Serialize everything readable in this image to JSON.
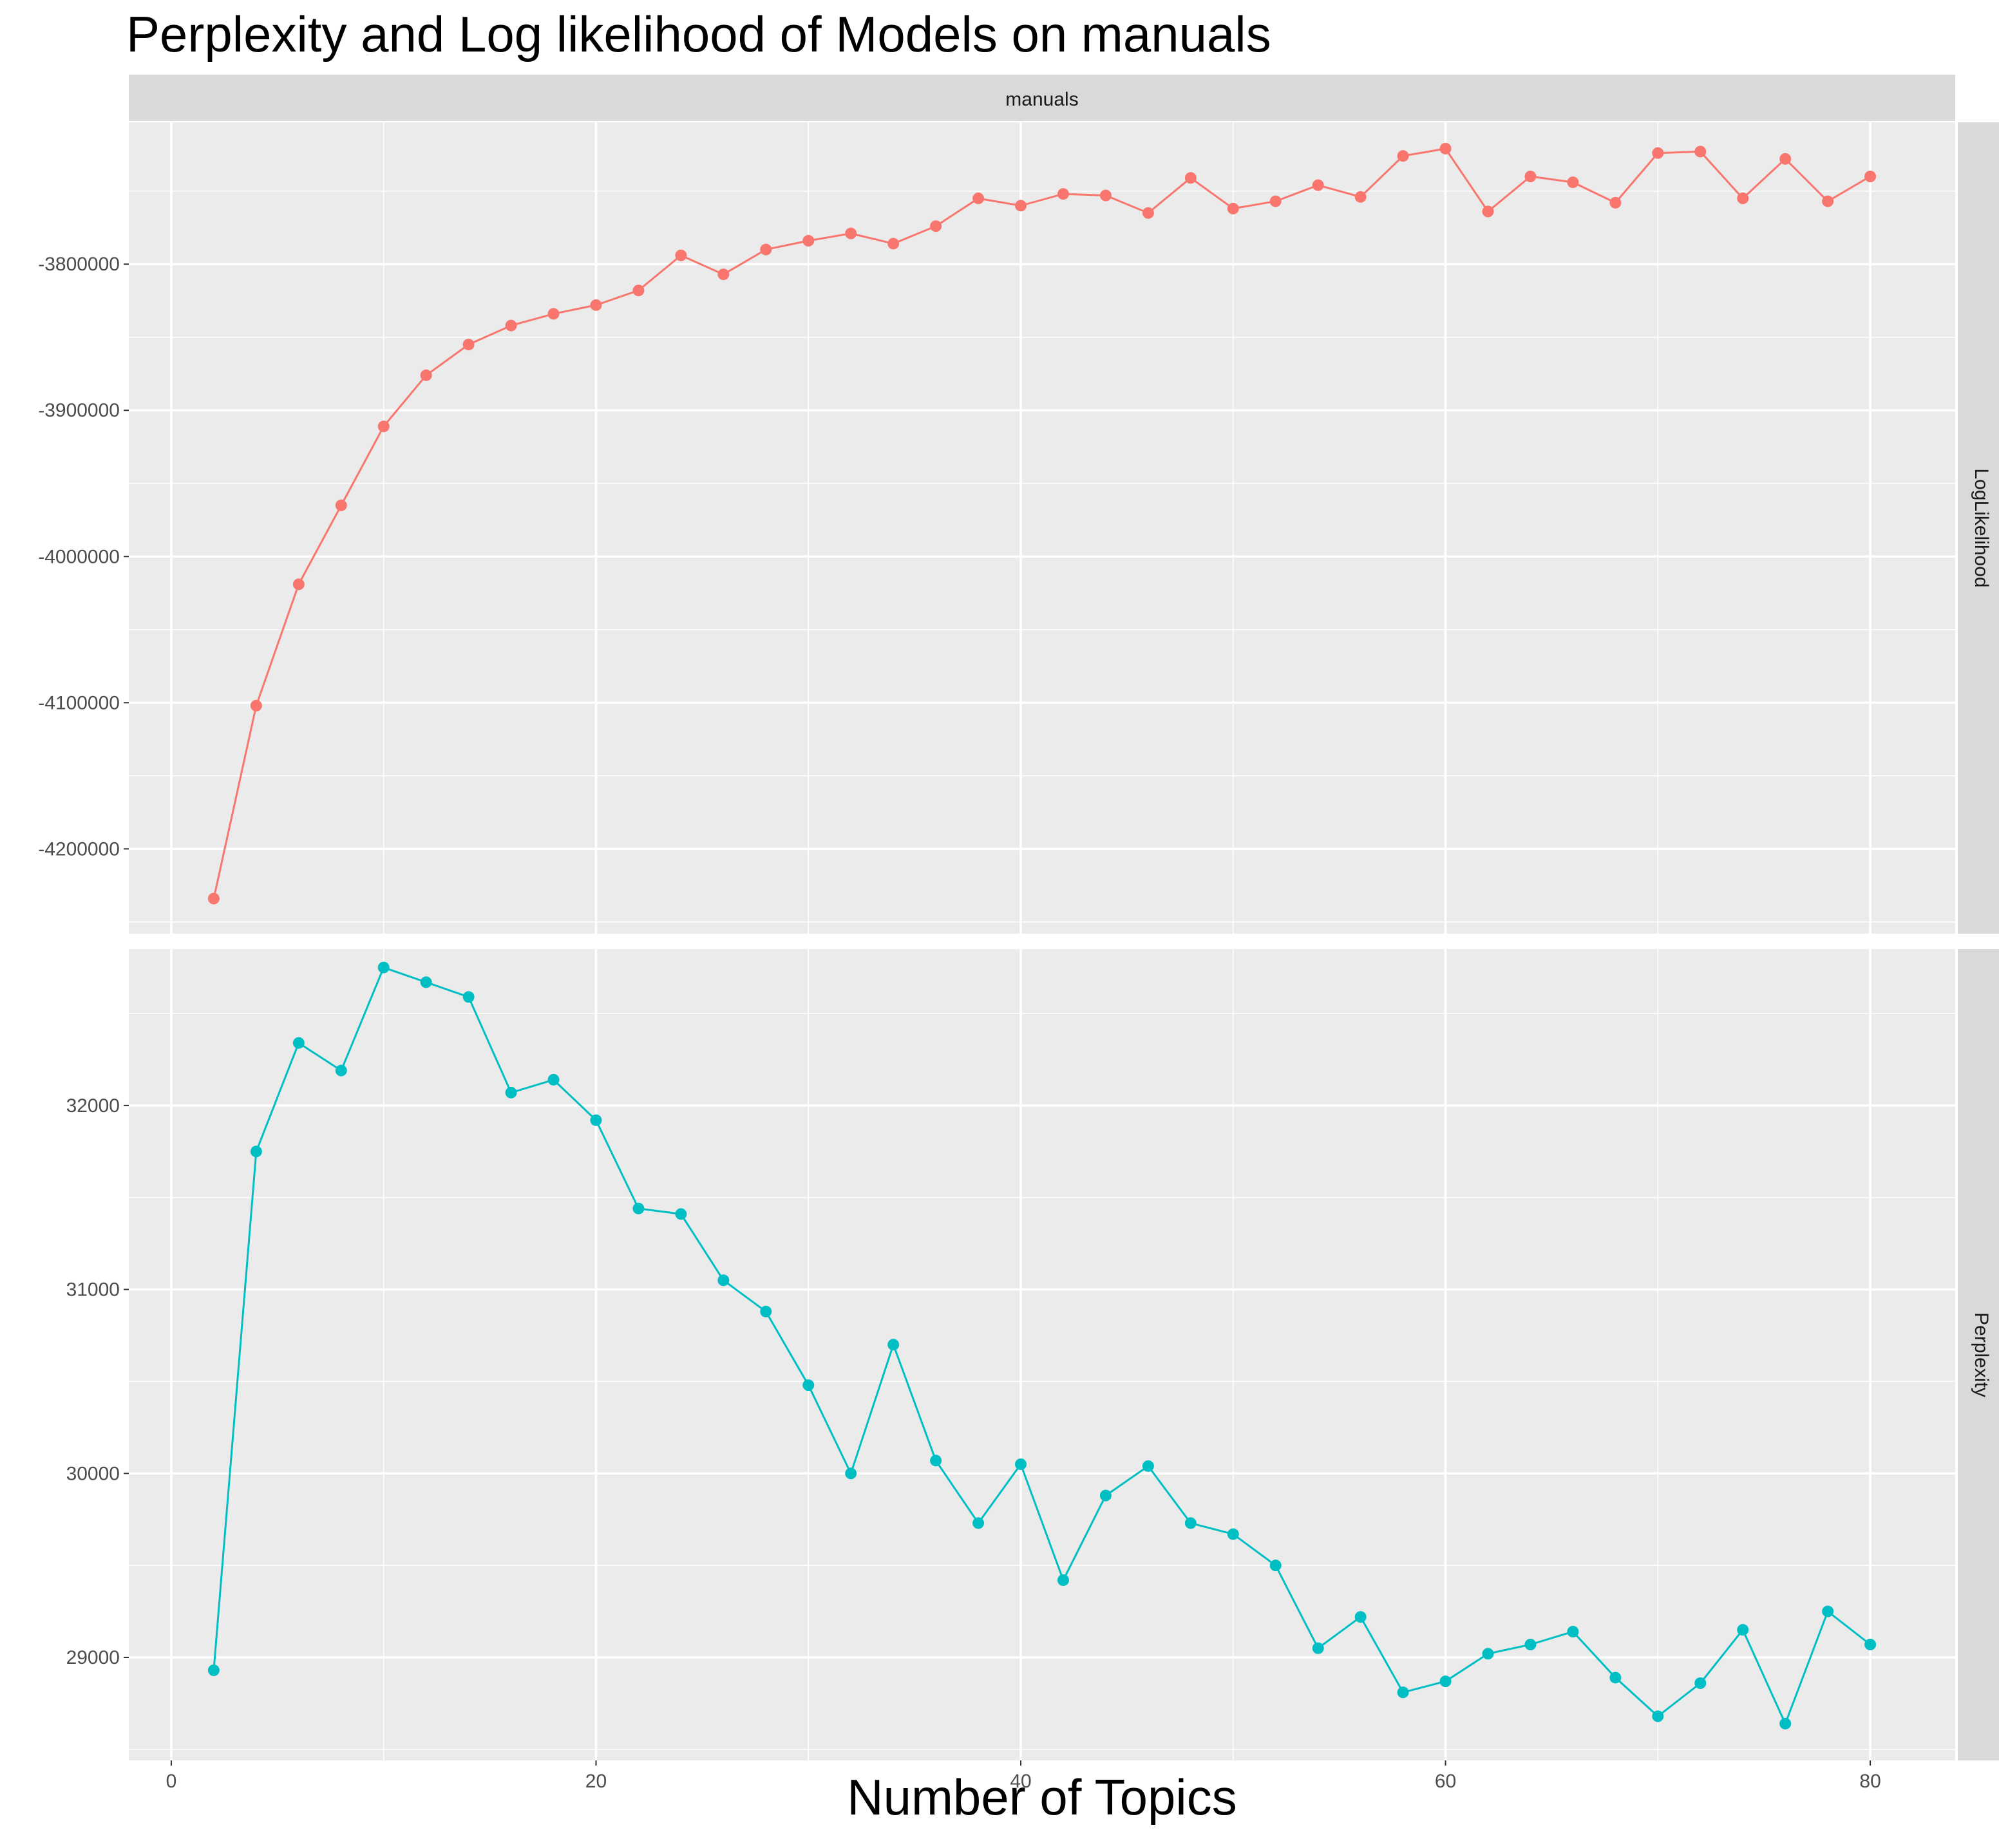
{
  "chart_data": {
    "type": "line",
    "title": "Perplexity and Log likelihood of Models on manuals",
    "xlabel": "Number of Topics",
    "column_strip": "manuals",
    "x": [
      2,
      4,
      6,
      8,
      10,
      12,
      14,
      16,
      18,
      20,
      22,
      24,
      26,
      28,
      30,
      32,
      34,
      36,
      38,
      40,
      42,
      44,
      46,
      48,
      50,
      52,
      54,
      56,
      58,
      60,
      62,
      64,
      66,
      68,
      70,
      72,
      74,
      76,
      78,
      80
    ],
    "xlim": [
      -2,
      84
    ],
    "xticks": [
      0,
      20,
      40,
      60,
      80
    ],
    "grid": true,
    "legend": "none",
    "panels": [
      {
        "strip": "LogLikelihood",
        "color": "#F8766D",
        "ylim": [
          -4258000,
          -3703000
        ],
        "yticks": [
          -4200000,
          -4100000,
          -4000000,
          -3900000,
          -3800000
        ],
        "ytick_labels": [
          "-4200000",
          "-4100000",
          "-4000000",
          "-3900000",
          "-3800000"
        ],
        "values": [
          -4234000,
          -4102000,
          -4019000,
          -3965000,
          -3911000,
          -3876000,
          -3855000,
          -3842000,
          -3834000,
          -3828000,
          -3818000,
          -3794000,
          -3807000,
          -3790000,
          -3784000,
          -3779000,
          -3786000,
          -3774000,
          -3755000,
          -3760000,
          -3752000,
          -3753000,
          -3765000,
          -3741000,
          -3762000,
          -3757000,
          -3746000,
          -3754000,
          -3726000,
          -3721000,
          -3764000,
          -3740000,
          -3744000,
          -3758000,
          -3724000,
          -3723000,
          -3755000,
          -3728000,
          -3757000,
          -3740000
        ]
      },
      {
        "strip": "Perplexity",
        "color": "#00BFC4",
        "ylim": [
          28440,
          32850
        ],
        "yticks": [
          29000,
          30000,
          31000,
          32000
        ],
        "ytick_labels": [
          "29000",
          "30000",
          "31000",
          "32000"
        ],
        "values": [
          28930,
          31750,
          32340,
          32190,
          32750,
          32670,
          32590,
          32070,
          32140,
          31920,
          31440,
          31410,
          31050,
          30880,
          30480,
          30000,
          30700,
          30070,
          29730,
          30050,
          29420,
          29880,
          30040,
          29730,
          29670,
          29500,
          29050,
          29220,
          28810,
          28870,
          29020,
          29070,
          29140,
          28890,
          28680,
          28860,
          29150,
          28640,
          29250,
          29070
        ]
      }
    ]
  }
}
